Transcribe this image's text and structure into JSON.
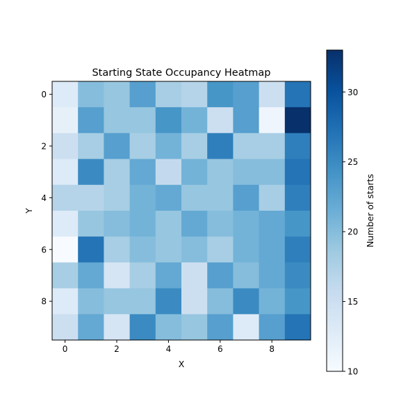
{
  "chart_data": {
    "type": "heatmap",
    "title": "Starting State Occupancy Heatmap",
    "xlabel": "X",
    "ylabel": "Y",
    "x_ticks": [
      0,
      2,
      4,
      6,
      8
    ],
    "y_ticks": [
      0,
      2,
      4,
      6,
      8
    ],
    "grid": false,
    "colormap": "Blues",
    "colorbar": {
      "label": "Number of starts",
      "min": 10,
      "max": 33,
      "ticks": [
        10,
        15,
        20,
        25,
        30
      ],
      "placement": "right"
    },
    "values": [
      [
        13,
        20,
        19,
        23,
        18,
        17,
        24,
        23,
        15,
        27
      ],
      [
        12,
        23,
        19,
        19,
        24,
        21,
        15,
        23,
        11,
        33
      ],
      [
        15,
        18,
        23,
        18,
        21,
        18,
        26,
        18,
        18,
        26
      ],
      [
        13,
        25,
        18,
        22,
        16,
        21,
        19,
        20,
        20,
        27
      ],
      [
        17,
        17,
        18,
        21,
        22,
        19,
        19,
        23,
        18,
        26
      ],
      [
        13,
        19,
        20,
        21,
        19,
        22,
        20,
        21,
        22,
        24
      ],
      [
        10,
        27,
        18,
        20,
        19,
        20,
        18,
        21,
        22,
        26
      ],
      [
        18,
        22,
        14,
        18,
        22,
        15,
        23,
        20,
        22,
        25
      ],
      [
        13,
        20,
        19,
        19,
        25,
        15,
        20,
        25,
        21,
        24
      ],
      [
        15,
        22,
        14,
        25,
        20,
        19,
        23,
        13,
        23,
        27
      ]
    ]
  }
}
